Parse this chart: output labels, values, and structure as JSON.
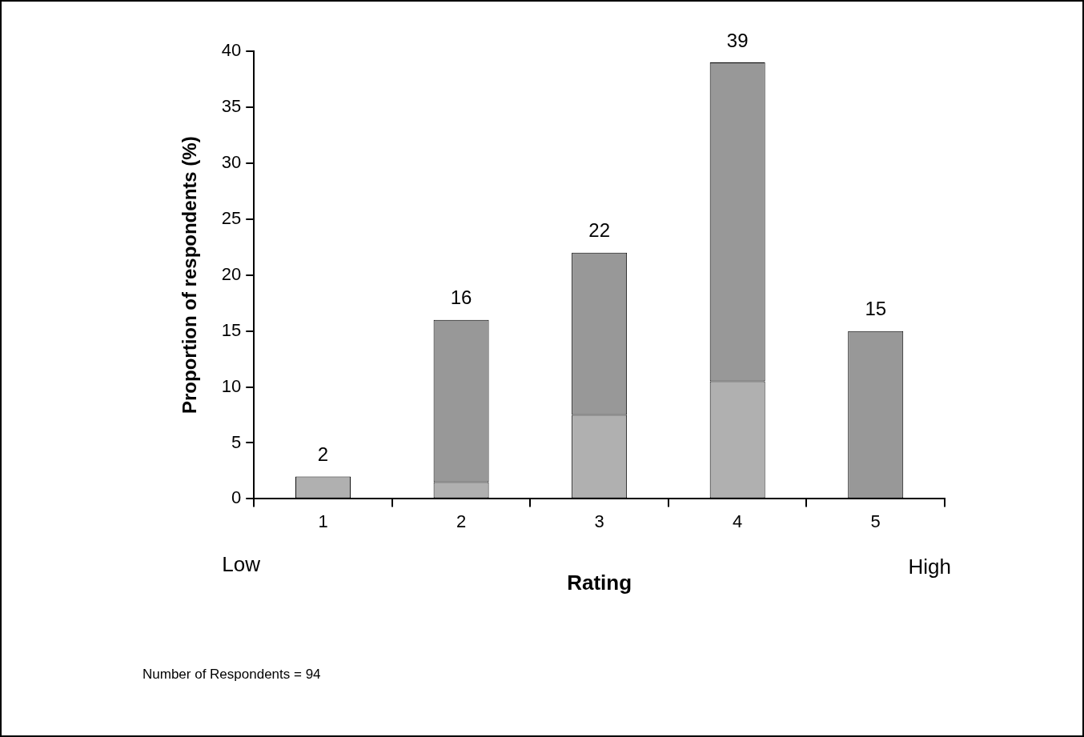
{
  "chart_data": {
    "type": "bar",
    "stacked": true,
    "xlabel": "Rating",
    "ylabel": "Proportion of respondents (%)",
    "categories": [
      "1",
      "2",
      "3",
      "4",
      "5"
    ],
    "series": [
      {
        "color": "#b0b0b0",
        "values": [
          2,
          1.5,
          7.5,
          10.5,
          null
        ]
      },
      {
        "color": "#989898",
        "values": [
          null,
          14.5,
          14.5,
          28.5,
          15
        ]
      }
    ],
    "totals": [
      "2",
      "16",
      "22",
      "39",
      "15"
    ],
    "ylim": [
      0,
      40
    ],
    "yticks": [
      0,
      5,
      10,
      15,
      20,
      25,
      30,
      35,
      40
    ],
    "grid": false,
    "legend": false,
    "annotations": [
      "Low",
      "High",
      "Number of Respondents = 94"
    ]
  }
}
